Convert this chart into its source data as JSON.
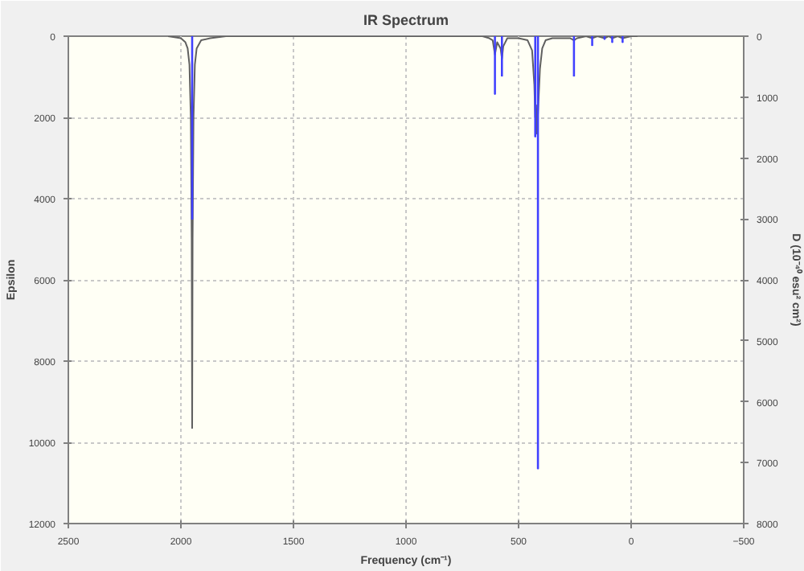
{
  "chart_data": {
    "type": "line",
    "title": "IR Spectrum",
    "xlabel": "Frequency (cm⁻¹)",
    "ylabel": "Epsilon",
    "y2label": "D (10⁻⁴⁰ esu² cm²)",
    "xlim": [
      2500,
      -500
    ],
    "xticks": [
      2500,
      2000,
      1500,
      1000,
      500,
      0,
      -500
    ],
    "ylim": [
      12000,
      0
    ],
    "yticks": [
      0,
      2000,
      4000,
      6000,
      8000,
      10000,
      12000
    ],
    "y2lim": [
      8000,
      0
    ],
    "y2ticks": [
      0,
      1000,
      2000,
      3000,
      4000,
      5000,
      6000,
      7000,
      8000
    ],
    "grid": true,
    "series": [
      {
        "color": "#606060",
        "x": [
          2057,
          2000,
          1980,
          1970,
          1962,
          1956,
          1952,
          1950,
          1948,
          1944,
          1938,
          1930,
          1910,
          1870,
          1800,
          1742,
          1500,
          1000,
          660,
          630,
          615,
          605,
          595,
          580,
          574,
          568,
          550,
          500,
          460,
          440,
          430,
          426,
          422,
          418,
          405,
          395,
          380,
          350,
          300,
          270,
          254,
          240,
          200,
          173,
          150,
          118,
          100,
          84,
          60,
          38,
          0,
          -28
        ],
        "values": [
          0,
          50,
          150,
          300,
          700,
          2000,
          5000,
          9650,
          5000,
          2000,
          700,
          300,
          100,
          50,
          0,
          0,
          0,
          0,
          0,
          50,
          100,
          450,
          150,
          300,
          550,
          250,
          50,
          50,
          100,
          350,
          1200,
          2000,
          1700,
          2400,
          800,
          300,
          100,
          50,
          50,
          50,
          100,
          50,
          0,
          50,
          0,
          50,
          0,
          50,
          0,
          50,
          0,
          0
        ]
      },
      {
        "type": "bar",
        "axis": "y2",
        "color": "#4040ff",
        "x": [
          1950,
          605,
          574,
          426,
          414,
          254,
          173,
          118,
          84,
          38
        ],
        "values": [
          3000,
          950,
          650,
          1650,
          7100,
          650,
          150,
          50,
          100,
          100
        ]
      }
    ]
  }
}
